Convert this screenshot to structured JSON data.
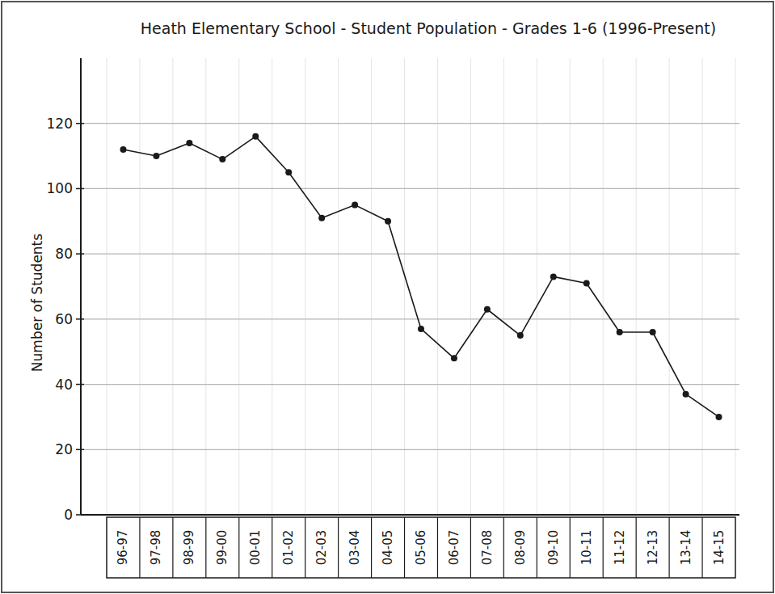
{
  "chart_data": {
    "type": "line",
    "title": "Heath Elementary School - Student Population - Grades 1-6 (1996-Present)",
    "y_label": "Number of Students",
    "categories": [
      "96-97",
      "97-98",
      "98-99",
      "99-00",
      "00-01",
      "01-02",
      "02-03",
      "03-04",
      "04-05",
      "05-06",
      "06-07",
      "07-08",
      "08-09",
      "09-10",
      "10-11",
      "11-12",
      "12-13",
      "13-14",
      "14-15"
    ],
    "values": [
      112,
      110,
      114,
      109,
      116,
      105,
      91,
      95,
      90,
      57,
      48,
      63,
      55,
      73,
      71,
      56,
      56,
      37,
      30
    ],
    "color": "#1a1a1a",
    "marker": "circle",
    "ylim": [
      0,
      140
    ],
    "yticks": [
      0,
      20,
      40,
      60,
      80,
      100,
      120
    ],
    "grid": true
  }
}
